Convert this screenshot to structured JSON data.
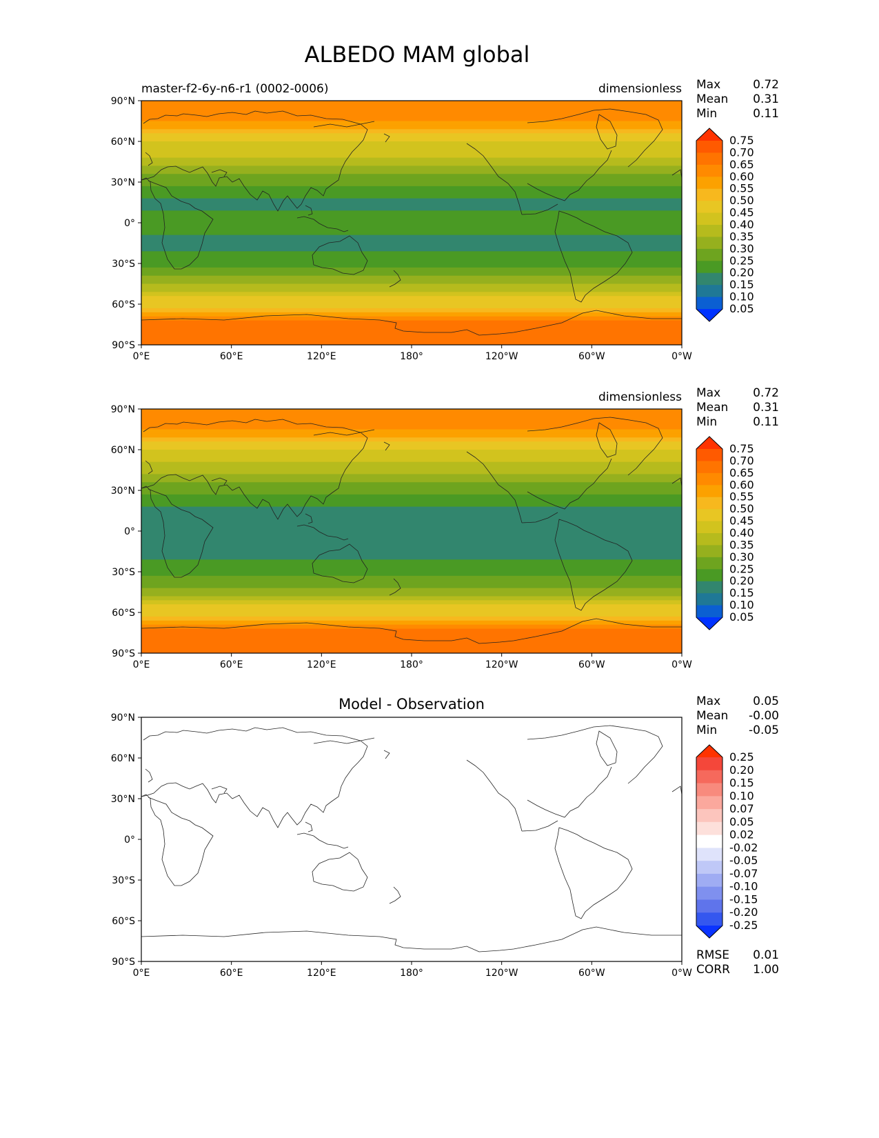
{
  "title": "ALBEDO MAM global",
  "chart_data": [
    {
      "type": "heatmap",
      "left_title": "master-f2-6y-n6-r1 (0002-0006)",
      "center_title": "",
      "units": "dimensionless",
      "stats": [
        {
          "label": "Max",
          "value": "0.72"
        },
        {
          "label": "Mean",
          "value": "0.31"
        },
        {
          "label": "Min",
          "value": "0.11"
        }
      ],
      "extra_stats": [],
      "x_ticks": [
        "0°E",
        "60°E",
        "120°E",
        "180°",
        "120°W",
        "60°W",
        "0°W"
      ],
      "y_ticks": [
        "90°N",
        "60°N",
        "30°N",
        "0°",
        "30°S",
        "60°S",
        "90°S"
      ],
      "colorbar": {
        "labels": [
          "0.75",
          "0.70",
          "0.65",
          "0.60",
          "0.55",
          "0.50",
          "0.45",
          "0.40",
          "0.35",
          "0.30",
          "0.25",
          "0.20",
          "0.15",
          "0.10",
          "0.05"
        ],
        "colors": [
          "#ff3300",
          "#ff5a00",
          "#ff7400",
          "#ff8a00",
          "#fca100",
          "#f7b81e",
          "#e8c623",
          "#d2c31e",
          "#b6bb1d",
          "#96b01e",
          "#6ea41f",
          "#4a9a24",
          "#32866e",
          "#1f7896",
          "#0b5fd2",
          "#0033ff"
        ]
      },
      "latitude_profile": [
        {
          "lat": 90,
          "value": 0.62
        },
        {
          "lat": 75,
          "value": 0.6
        },
        {
          "lat": 60,
          "value": 0.45
        },
        {
          "lat": 45,
          "value": 0.38
        },
        {
          "lat": 30,
          "value": 0.26
        },
        {
          "lat": 15,
          "value": 0.19
        },
        {
          "lat": 0,
          "value": 0.21
        },
        {
          "lat": -15,
          "value": 0.19
        },
        {
          "lat": -30,
          "value": 0.22
        },
        {
          "lat": -45,
          "value": 0.34
        },
        {
          "lat": -55,
          "value": 0.45
        },
        {
          "lat": -65,
          "value": 0.52
        },
        {
          "lat": -75,
          "value": 0.68
        },
        {
          "lat": -90,
          "value": 0.66
        }
      ]
    },
    {
      "type": "heatmap",
      "left_title": "",
      "center_title": "",
      "units": "dimensionless",
      "stats": [
        {
          "label": "Max",
          "value": "0.72"
        },
        {
          "label": "Mean",
          "value": "0.31"
        },
        {
          "label": "Min",
          "value": "0.11"
        }
      ],
      "extra_stats": [],
      "x_ticks": [
        "0°E",
        "60°E",
        "120°E",
        "180°",
        "120°W",
        "60°W",
        "0°W"
      ],
      "y_ticks": [
        "90°N",
        "60°N",
        "30°N",
        "0°",
        "30°S",
        "60°S",
        "90°S"
      ],
      "colorbar": {
        "labels": [
          "0.75",
          "0.70",
          "0.65",
          "0.60",
          "0.55",
          "0.50",
          "0.45",
          "0.40",
          "0.35",
          "0.30",
          "0.25",
          "0.20",
          "0.15",
          "0.10",
          "0.05"
        ],
        "colors": [
          "#ff3300",
          "#ff5a00",
          "#ff7400",
          "#ff8a00",
          "#fca100",
          "#f7b81e",
          "#e8c623",
          "#d2c31e",
          "#b6bb1d",
          "#96b01e",
          "#6ea41f",
          "#4a9a24",
          "#32866e",
          "#1f7896",
          "#0b5fd2",
          "#0033ff"
        ]
      },
      "latitude_profile": [
        {
          "lat": 90,
          "value": 0.62
        },
        {
          "lat": 75,
          "value": 0.6
        },
        {
          "lat": 60,
          "value": 0.44
        },
        {
          "lat": 45,
          "value": 0.37
        },
        {
          "lat": 30,
          "value": 0.26
        },
        {
          "lat": 15,
          "value": 0.19
        },
        {
          "lat": 0,
          "value": 0.2
        },
        {
          "lat": -15,
          "value": 0.19
        },
        {
          "lat": -30,
          "value": 0.22
        },
        {
          "lat": -45,
          "value": 0.33
        },
        {
          "lat": -55,
          "value": 0.45
        },
        {
          "lat": -65,
          "value": 0.52
        },
        {
          "lat": -75,
          "value": 0.68
        },
        {
          "lat": -90,
          "value": 0.66
        }
      ]
    },
    {
      "type": "heatmap",
      "left_title": "",
      "center_title": "Model - Observation",
      "units": "",
      "stats": [
        {
          "label": "Max",
          "value": "0.05"
        },
        {
          "label": "Mean",
          "value": "-0.00"
        },
        {
          "label": "Min",
          "value": "-0.05"
        }
      ],
      "extra_stats": [
        {
          "label": "RMSE",
          "value": "0.01"
        },
        {
          "label": "CORR",
          "value": "1.00"
        }
      ],
      "x_ticks": [
        "0°E",
        "60°E",
        "120°E",
        "180°",
        "120°W",
        "60°W",
        "0°W"
      ],
      "y_ticks": [
        "90°N",
        "60°N",
        "30°N",
        "0°",
        "30°S",
        "60°S",
        "90°S"
      ],
      "colorbar": {
        "labels": [
          "0.25",
          "0.20",
          "0.15",
          "0.10",
          "0.07",
          "0.05",
          "0.02",
          "-0.02",
          "-0.05",
          "-0.07",
          "-0.10",
          "-0.15",
          "-0.20",
          "-0.25"
        ],
        "colors": [
          "#ff3300",
          "#f4473a",
          "#f6695c",
          "#f88a7d",
          "#fba89d",
          "#fcc5bd",
          "#fde0db",
          "#ffffff",
          "#dfe3fb",
          "#bfc8f7",
          "#9facf3",
          "#7f90ef",
          "#5f74eb",
          "#3457ef",
          "#0a33ff"
        ]
      },
      "latitude_profile": []
    }
  ]
}
